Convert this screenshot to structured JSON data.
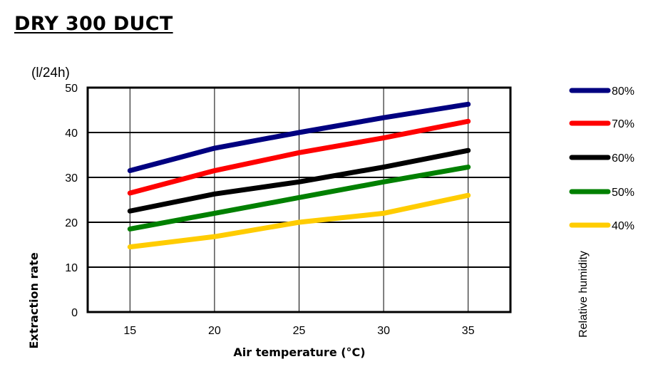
{
  "chart_data": {
    "type": "line",
    "title": "DRY 300 DUCT",
    "unit_label": "(l/24h)",
    "xlabel": "Air temperature (°C)",
    "ylabel": "Extraction rate",
    "legend_title": "Relative humidity",
    "legend_position": "right",
    "grid": true,
    "x": [
      15,
      20,
      25,
      30,
      35
    ],
    "xlim": [
      12.5,
      37.5
    ],
    "ylim": [
      0,
      50
    ],
    "x_ticks": [
      "15",
      "20",
      "25",
      "30",
      "35"
    ],
    "y_ticks": [
      "0",
      "10",
      "20",
      "30",
      "40",
      "50"
    ],
    "series": [
      {
        "name": "80%",
        "color": "#000080",
        "values": [
          31.5,
          36.5,
          40,
          43.3,
          46.3
        ]
      },
      {
        "name": "70%",
        "color": "#ff0000",
        "values": [
          26.5,
          31.5,
          35.5,
          38.8,
          42.5
        ]
      },
      {
        "name": "60%",
        "color": "#000000",
        "values": [
          22.5,
          26.3,
          29,
          32.3,
          36
        ]
      },
      {
        "name": "50%",
        "color": "#008000",
        "values": [
          18.5,
          22,
          25.5,
          29,
          32.3
        ]
      },
      {
        "name": "40%",
        "color": "#ffcc00",
        "values": [
          14.5,
          16.8,
          20,
          22,
          26
        ]
      }
    ]
  }
}
